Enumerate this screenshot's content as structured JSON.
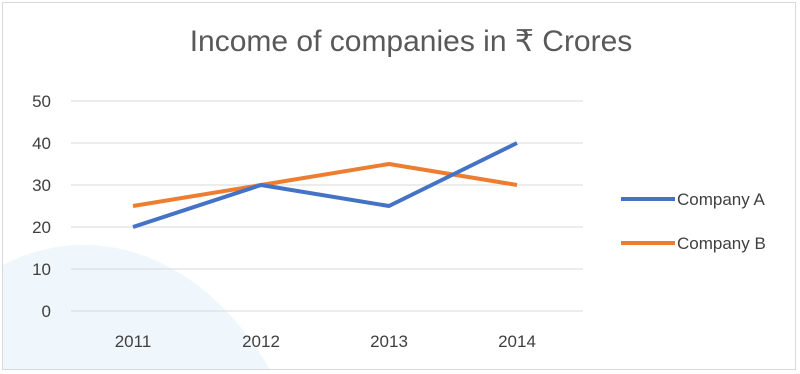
{
  "chart_data": {
    "type": "line",
    "title": "Income of companies in ₹ Crores",
    "categories": [
      "2011",
      "2012",
      "2013",
      "2014"
    ],
    "ylim": [
      0,
      50
    ],
    "y_ticks": [
      0,
      10,
      20,
      30,
      40,
      50
    ],
    "y_tick_labels": [
      "0",
      "10",
      "20",
      "30",
      "40",
      "50"
    ],
    "grid": true,
    "legend_position": "right",
    "series": [
      {
        "name": "Company A",
        "values": [
          20,
          30,
          25,
          40
        ],
        "color": "#4472C4"
      },
      {
        "name": "Company B",
        "values": [
          25,
          30,
          35,
          30
        ],
        "color": "#ED7D31"
      }
    ],
    "colors": {
      "grid": "#d9d9d9",
      "title": "#595959",
      "text": "#404040",
      "watermark": "#e6f2fa"
    }
  }
}
